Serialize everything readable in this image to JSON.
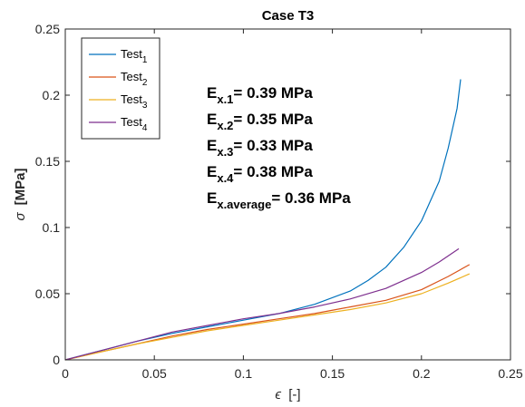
{
  "chart_data": {
    "type": "line",
    "title": "Case T3",
    "xlabel": {
      "symbol": "ϵ",
      "unit": "[-]"
    },
    "ylabel": {
      "symbol": "σ",
      "unit": "[MPa]"
    },
    "xlim": [
      0,
      0.25
    ],
    "ylim": [
      0,
      0.25
    ],
    "xticks": [
      "0",
      "0.05",
      "0.1",
      "0.15",
      "0.2",
      "0.25"
    ],
    "yticks": [
      "0",
      "0.05",
      "0.1",
      "0.15",
      "0.2",
      "0.25"
    ],
    "grid": false,
    "legend_placement": "top-left",
    "series": [
      {
        "name": "Test",
        "subscript": "1",
        "color": "#0072BD",
        "points": [
          [
            0,
            0
          ],
          [
            0.02,
            0.007
          ],
          [
            0.04,
            0.014
          ],
          [
            0.06,
            0.02
          ],
          [
            0.08,
            0.025
          ],
          [
            0.1,
            0.03
          ],
          [
            0.12,
            0.035
          ],
          [
            0.14,
            0.042
          ],
          [
            0.16,
            0.052
          ],
          [
            0.17,
            0.06
          ],
          [
            0.18,
            0.07
          ],
          [
            0.19,
            0.085
          ],
          [
            0.2,
            0.105
          ],
          [
            0.21,
            0.135
          ],
          [
            0.215,
            0.16
          ],
          [
            0.22,
            0.19
          ],
          [
            0.222,
            0.212
          ]
        ]
      },
      {
        "name": "Test",
        "subscript": "2",
        "color": "#D95319",
        "points": [
          [
            0,
            0
          ],
          [
            0.02,
            0.006
          ],
          [
            0.04,
            0.012
          ],
          [
            0.06,
            0.018
          ],
          [
            0.08,
            0.023
          ],
          [
            0.1,
            0.027
          ],
          [
            0.12,
            0.031
          ],
          [
            0.14,
            0.035
          ],
          [
            0.16,
            0.04
          ],
          [
            0.18,
            0.045
          ],
          [
            0.2,
            0.053
          ],
          [
            0.215,
            0.063
          ],
          [
            0.227,
            0.072
          ]
        ]
      },
      {
        "name": "Test",
        "subscript": "3",
        "color": "#EDB120",
        "points": [
          [
            0,
            0
          ],
          [
            0.02,
            0.006
          ],
          [
            0.04,
            0.012
          ],
          [
            0.06,
            0.017
          ],
          [
            0.08,
            0.022
          ],
          [
            0.1,
            0.026
          ],
          [
            0.12,
            0.03
          ],
          [
            0.14,
            0.034
          ],
          [
            0.16,
            0.038
          ],
          [
            0.18,
            0.043
          ],
          [
            0.2,
            0.05
          ],
          [
            0.215,
            0.058
          ],
          [
            0.227,
            0.065
          ]
        ]
      },
      {
        "name": "Test",
        "subscript": "4",
        "color": "#7E2F8E",
        "points": [
          [
            0,
            0
          ],
          [
            0.02,
            0.007
          ],
          [
            0.04,
            0.014
          ],
          [
            0.06,
            0.021
          ],
          [
            0.08,
            0.026
          ],
          [
            0.1,
            0.031
          ],
          [
            0.12,
            0.035
          ],
          [
            0.14,
            0.04
          ],
          [
            0.16,
            0.046
          ],
          [
            0.18,
            0.054
          ],
          [
            0.2,
            0.066
          ],
          [
            0.21,
            0.074
          ],
          [
            0.221,
            0.084
          ]
        ]
      }
    ],
    "annotations": [
      {
        "main": "E",
        "sub": "x.1",
        "rest": "= 0.39 MPa"
      },
      {
        "main": "E",
        "sub": "x.2",
        "rest": "= 0.35 MPa"
      },
      {
        "main": "E",
        "sub": "x.3",
        "rest": "= 0.33 MPa"
      },
      {
        "main": "E",
        "sub": "x.4",
        "rest": "= 0.38 MPa"
      },
      {
        "main": "E",
        "sub": "x.average",
        "rest": "= 0.36 MPa"
      }
    ]
  }
}
